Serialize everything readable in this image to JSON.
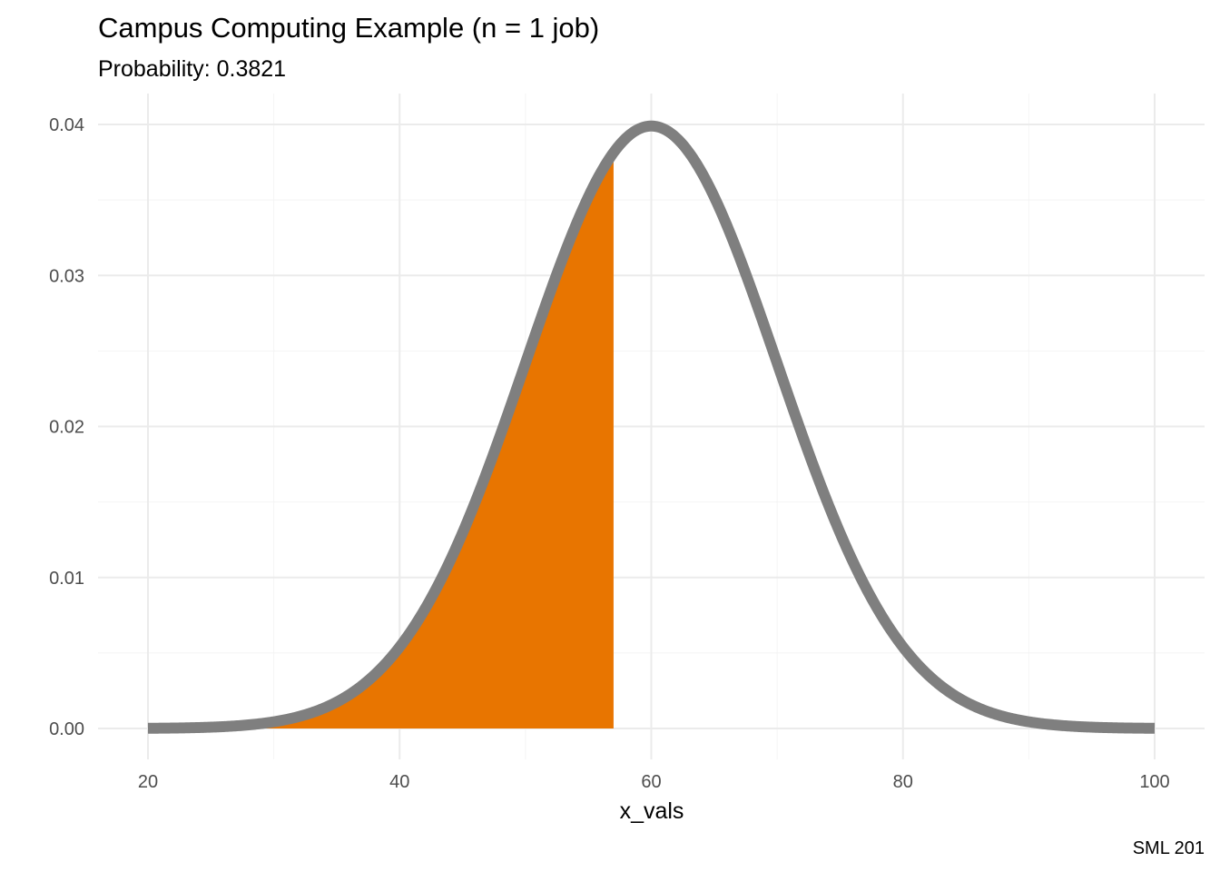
{
  "chart_data": {
    "type": "area",
    "title": "Campus Computing Example (n = 1 job)",
    "subtitle": "Probability: 0.3821",
    "xlabel": "x_vals",
    "ylabel": "",
    "caption": "SML 201",
    "xlim": [
      20,
      100
    ],
    "ylim": [
      0,
      0.04
    ],
    "x_ticks": [
      20,
      40,
      60,
      80,
      100
    ],
    "x_tick_labels": [
      "20",
      "40",
      "60",
      "80",
      "100"
    ],
    "y_ticks": [
      0,
      0.01,
      0.02,
      0.03,
      0.04
    ],
    "y_tick_labels": [
      "0.00",
      "0.01",
      "0.02",
      "0.03",
      "0.04"
    ],
    "grid": true,
    "distribution": {
      "family": "normal",
      "mean": 60,
      "sd": 10
    },
    "shaded_region": {
      "from": 20,
      "to": 57,
      "probability": 0.3821
    },
    "series": [
      {
        "values": [
          [
            20,
            1.34e-05
          ],
          [
            25,
            8.73e-05
          ],
          [
            30,
            0.000443
          ],
          [
            35,
            0.001753
          ],
          [
            40,
            0.0054
          ],
          [
            45,
            0.01295
          ],
          [
            50,
            0.0242
          ],
          [
            55,
            0.0352
          ],
          [
            57,
            0.03814
          ],
          [
            60,
            0.03989
          ],
          [
            65,
            0.0352
          ],
          [
            70,
            0.0242
          ],
          [
            75,
            0.01295
          ],
          [
            80,
            0.0054
          ],
          [
            85,
            0.001753
          ],
          [
            90,
            0.000443
          ],
          [
            95,
            8.73e-05
          ],
          [
            100,
            1.34e-05
          ]
        ]
      }
    ],
    "colors": {
      "curve": "#7f7f7f",
      "fill": "#e87500",
      "grid_major": "#ebebeb",
      "grid_minor": "#f4f4f4",
      "tick_label": "#4d4d4d",
      "text": "#000000",
      "background": "#ffffff"
    }
  }
}
